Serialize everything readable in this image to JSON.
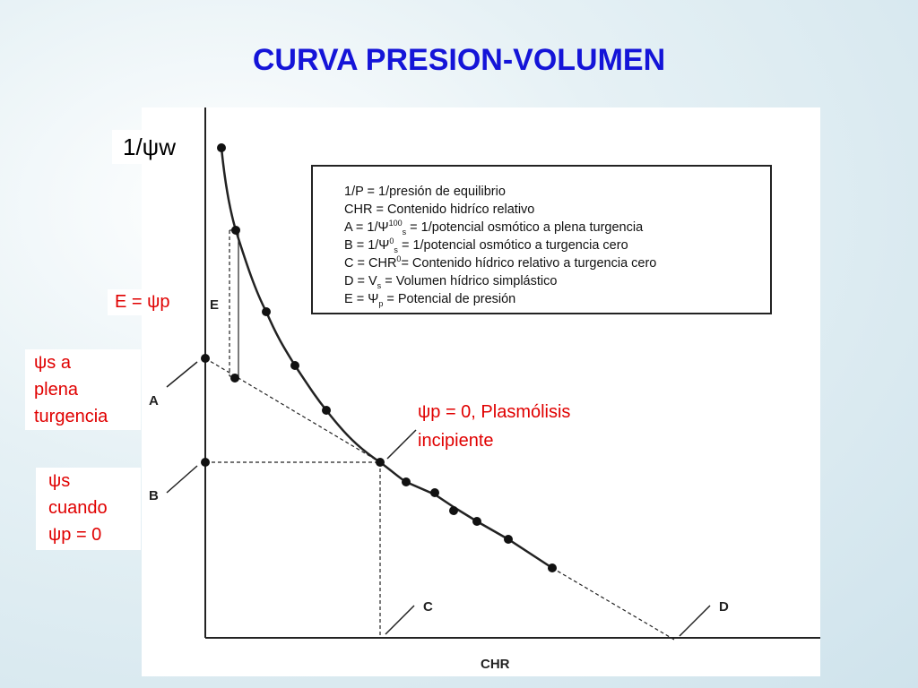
{
  "title": "CURVA PRESION-VOLUMEN",
  "y_axis_label": "1/ψw",
  "x_axis_label": "CHR",
  "figure_labels": {
    "E": "E",
    "A": "A",
    "B": "B",
    "C": "C",
    "D": "D"
  },
  "legend": [
    {
      "main": "1/P = 1/presión de equilibrio"
    },
    {
      "main": "CHR = Contenido hidríco relativo"
    },
    {
      "main": "A = 1/Ψ",
      "sub": "s",
      "sup": "100",
      "rest": " = 1/potencial osmótico a plena turgencia"
    },
    {
      "main": "B = 1/Ψ",
      "sub": "s",
      "sup": "0",
      "rest": " = 1/potencial osmótico a turgencia cero"
    },
    {
      "main": "C = CHR",
      "sup": "0",
      "rest": "= Contenido hídrico relativo a turgencia cero"
    },
    {
      "main": "D = V",
      "sub": "s",
      "rest": " = Volumen hídrico simplástico"
    },
    {
      "main": "E = Ψ",
      "sub": "p",
      "rest": " = Potencial de presión"
    }
  ],
  "annotations": {
    "e_label": "E = ψp",
    "full_turgor": [
      "ψs a",
      "plena",
      "turgencia"
    ],
    "zero_turgor": [
      "ψs",
      "cuando",
      "ψp = 0"
    ],
    "plasmolysis": [
      "ψp = 0, Plasmólisis",
      "incipiente"
    ]
  }
}
